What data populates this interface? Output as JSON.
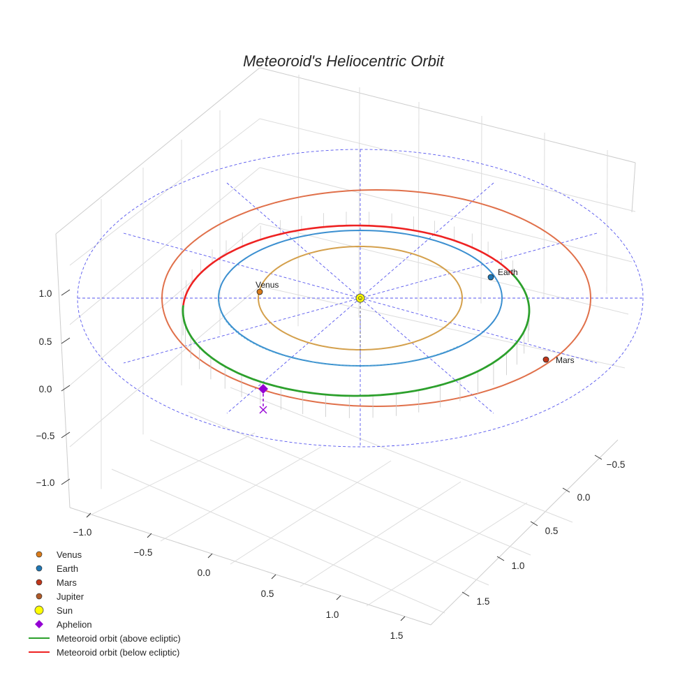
{
  "chart_data": {
    "type": "line",
    "title": "Meteoroid's Heliocentric Orbit",
    "projection": "3d",
    "xlabel": "",
    "ylabel": "",
    "zlabel": "",
    "x_ticks": [
      "−1.0",
      "−0.5",
      "0.0",
      "0.5",
      "1.0",
      "1.5"
    ],
    "y_ticks": [
      "−0.5",
      "0.0",
      "0.5",
      "1.0",
      "1.5"
    ],
    "z_ticks": [
      "1.0",
      "0.5",
      "0.0",
      "−0.5",
      "−1.0"
    ],
    "grid": true,
    "legend_position": "bottom-left",
    "planets": [
      {
        "name": "Venus",
        "label": "Venus",
        "orbit_radius_au": 0.72,
        "color": "#d97b1a",
        "orbit_color": "#d4a04c"
      },
      {
        "name": "Earth",
        "label": "Earth",
        "orbit_radius_au": 1.0,
        "color": "#1f77b4",
        "orbit_color": "#3b8fd0"
      },
      {
        "name": "Mars",
        "label": "Mars",
        "orbit_radius_au": 1.52,
        "color": "#c0361a",
        "orbit_color": "#e0704a"
      },
      {
        "name": "Jupiter",
        "label": "",
        "color": "#b05a28"
      }
    ],
    "sun": {
      "name": "Sun",
      "color": "#ffff00"
    },
    "aphelion": {
      "name": "Aphelion",
      "color": "#9400d3"
    },
    "series": [
      {
        "name": "Meteoroid orbit (above ecliptic)",
        "color": "#2ca02c"
      },
      {
        "name": "Meteoroid orbit (below ecliptic)",
        "color": "#ee2222"
      }
    ],
    "reference_grid": {
      "color": "#5555ee",
      "style": "dashed"
    }
  },
  "legend": {
    "items": [
      {
        "label": "Venus",
        "marker": "circle",
        "color": "#d97b1a"
      },
      {
        "label": "Earth",
        "marker": "circle",
        "color": "#1f77b4"
      },
      {
        "label": "Mars",
        "marker": "circle",
        "color": "#c0361a"
      },
      {
        "label": "Jupiter",
        "marker": "circle",
        "color": "#b05a28"
      },
      {
        "label": "Sun",
        "marker": "circle-large",
        "color": "#ffff00"
      },
      {
        "label": "Aphelion",
        "marker": "diamond",
        "color": "#9400d3"
      },
      {
        "label": "Meteoroid orbit (above ecliptic)",
        "marker": "line",
        "color": "#2ca02c"
      },
      {
        "label": "Meteoroid orbit (below ecliptic)",
        "marker": "line",
        "color": "#ee2222"
      }
    ]
  }
}
